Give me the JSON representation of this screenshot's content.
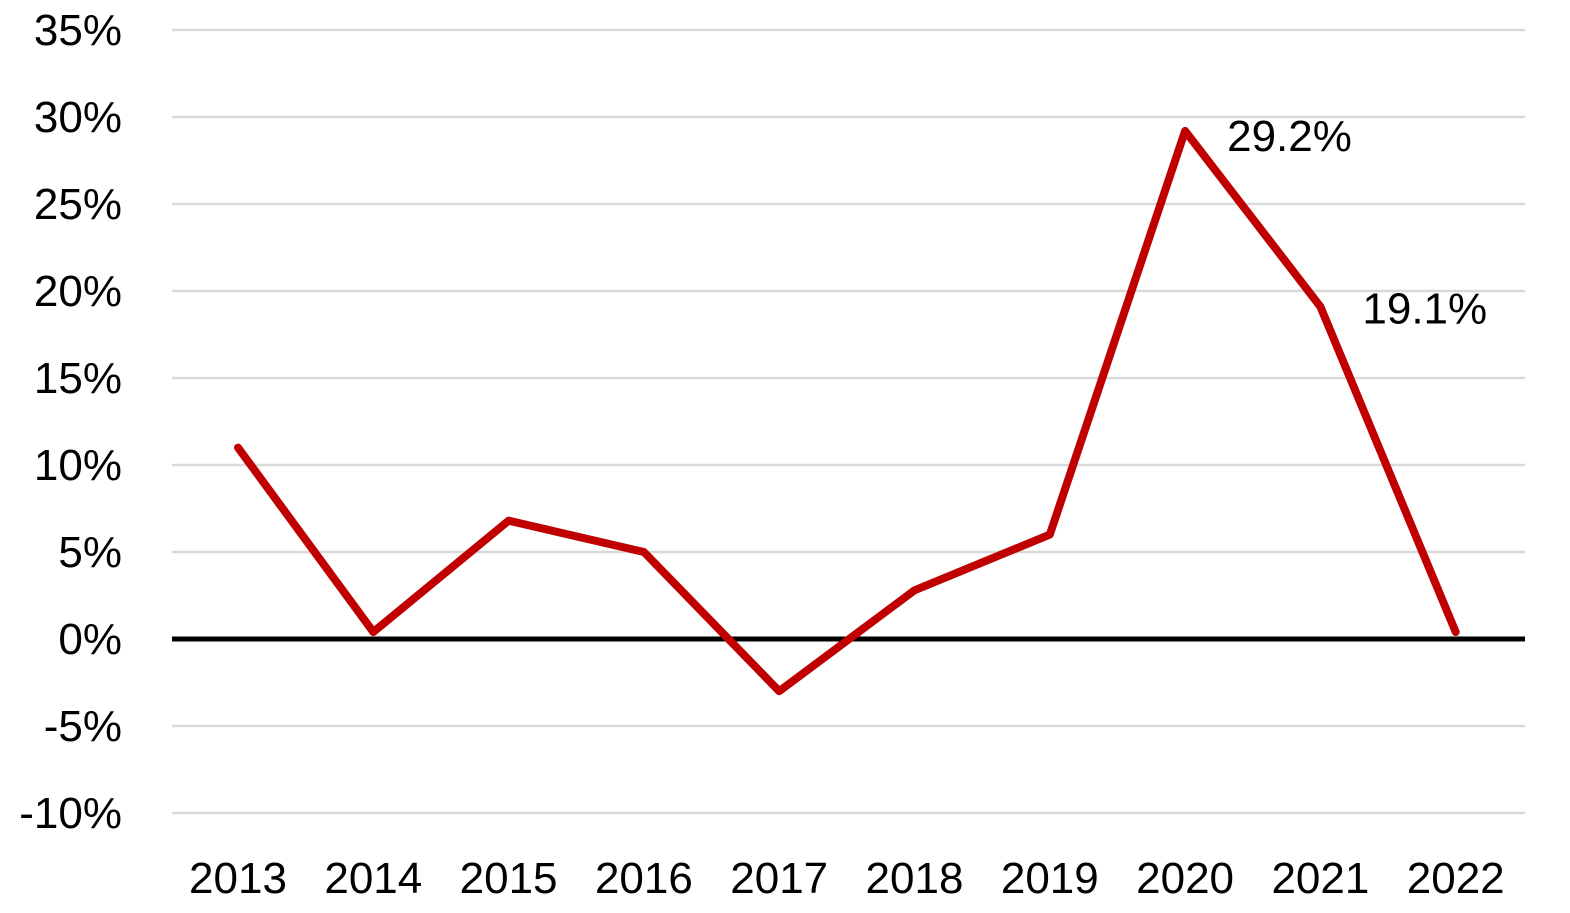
{
  "chart_data": {
    "type": "line",
    "title": "",
    "xlabel": "",
    "ylabel": "",
    "categories": [
      "2013",
      "2014",
      "2015",
      "2016",
      "2017",
      "2018",
      "2019",
      "2020",
      "2021",
      "2022"
    ],
    "series": [
      {
        "values": [
          11.0,
          0.4,
          6.8,
          5.0,
          -3.0,
          2.8,
          6.0,
          29.2,
          19.1,
          0.4
        ],
        "color": "#c00000"
      }
    ],
    "ylim": [
      -10,
      35
    ],
    "y_ticks": [
      -10,
      -5,
      0,
      5,
      10,
      15,
      20,
      25,
      30,
      35
    ],
    "y_tick_labels": [
      "-10%",
      "-5%",
      "0%",
      "5%",
      "10%",
      "15%",
      "20%",
      "25%",
      "30%",
      "35%"
    ],
    "annotations": [
      {
        "category": "2020",
        "text": "29.2%"
      },
      {
        "category": "2021",
        "text": "19.1%"
      }
    ],
    "grid": true,
    "gridline_color": "#d9d9d9",
    "zero_line_color": "#000000",
    "legend": "none"
  }
}
